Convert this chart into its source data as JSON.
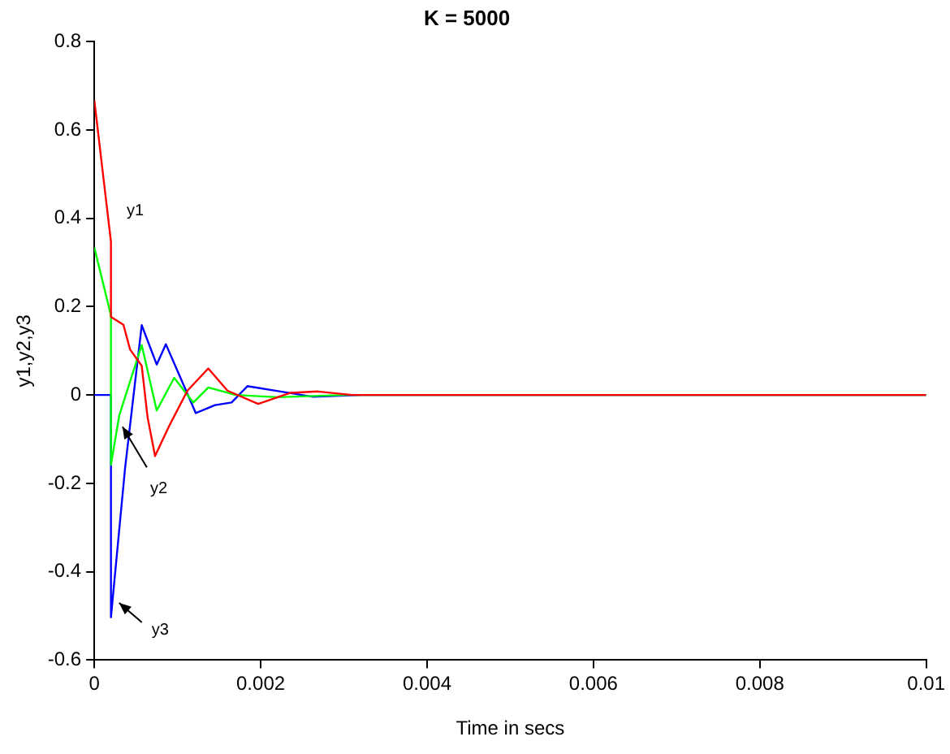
{
  "chart_data": {
    "type": "line",
    "title": "K = 5000",
    "xlabel": "Time in secs",
    "ylabel": "y1,y2,y3",
    "xlim": [
      0,
      0.01
    ],
    "xticks": [
      0,
      0.002,
      0.004,
      0.006,
      0.008,
      0.01
    ],
    "ylim": [
      -0.6,
      0.8
    ],
    "yticks": [
      -0.6,
      -0.4,
      -0.2,
      0,
      0.2,
      0.4,
      0.6,
      0.8
    ],
    "grid": false,
    "legend": false,
    "marker": "none",
    "line_style": "solid",
    "series": [
      {
        "color": "#ff0000",
        "x": [
          0,
          0.0002,
          0.0002,
          0.00035,
          0.00043,
          0.00057,
          0.00064,
          0.00073,
          0.0009,
          0.00112,
          0.00137,
          0.0016,
          0.00197,
          0.00236,
          0.00269,
          0.0031,
          0.01
        ],
        "values": [
          0.667,
          0.347,
          0.177,
          0.159,
          0.103,
          0.066,
          -0.05,
          -0.138,
          -0.07,
          0.01,
          0.06,
          0.01,
          -0.02,
          0.005,
          0.008,
          0,
          0
        ]
      },
      {
        "color": "#00ff00",
        "x": [
          0,
          0.0002,
          0.0002,
          0.0003,
          0.00057,
          0.00075,
          0.00096,
          0.00119,
          0.00137,
          0.0017,
          0.0022,
          0.003,
          0.01
        ],
        "values": [
          0.334,
          0.18,
          -0.158,
          -0.046,
          0.113,
          -0.035,
          0.039,
          -0.017,
          0.017,
          0,
          -0.005,
          0,
          0
        ]
      },
      {
        "color": "#0000ff",
        "x": [
          0,
          0.0002,
          0.0002,
          0.00037,
          0.00057,
          0.00075,
          0.00086,
          0.00102,
          0.00122,
          0.00145,
          0.00165,
          0.00184,
          0.00224,
          0.00263,
          0.0032,
          0.01
        ],
        "values": [
          0,
          0,
          -0.503,
          -0.165,
          0.158,
          0.069,
          0.115,
          0.046,
          -0.041,
          -0.023,
          -0.017,
          0.02,
          0.008,
          -0.004,
          0,
          0
        ]
      }
    ],
    "annotations": [
      "y1",
      {
        "text": "y2",
        "x": 0.0003,
        "y": -0.046
      },
      {
        "text": "y3",
        "x": 0.00022,
        "y": -0.463
      }
    ]
  }
}
